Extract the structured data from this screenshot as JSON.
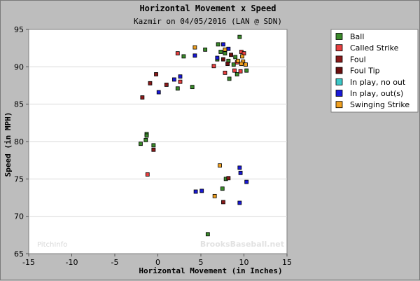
{
  "chart_data": {
    "type": "scatter",
    "title": "Horizontal Movement x Speed",
    "subtitle": "Kazmir on 04/05/2016 (LAN @ SDN)",
    "xlabel": "Horizontal Movement (in Inches)",
    "ylabel": "Speed (in MPH)",
    "xlim": [
      -15,
      15
    ],
    "ylim": [
      65,
      95
    ],
    "xticks": [
      "-15",
      "-10",
      "-5",
      "0",
      "5",
      "10",
      "15"
    ],
    "yticks": [
      "65",
      "70",
      "75",
      "80",
      "85",
      "90",
      "95"
    ],
    "grid": "horizontal",
    "legend_position": "right",
    "series": [
      {
        "name": "Ball",
        "color": "#3a8a2a",
        "points": [
          [
            7.0,
            93.0
          ],
          [
            9.5,
            94.0
          ],
          [
            5.5,
            92.3
          ],
          [
            7.3,
            92.0
          ],
          [
            7.8,
            91.8
          ],
          [
            9.0,
            91.3
          ],
          [
            6.9,
            91.0
          ],
          [
            8.2,
            90.8
          ],
          [
            8.8,
            90.3
          ],
          [
            10.3,
            89.5
          ],
          [
            9.2,
            89.0
          ],
          [
            8.3,
            88.4
          ],
          [
            3.0,
            91.4
          ],
          [
            2.3,
            87.1
          ],
          [
            4.0,
            87.3
          ],
          [
            -1.3,
            81.0
          ],
          [
            -1.3,
            80.8
          ],
          [
            -1.4,
            80.2
          ],
          [
            -2.0,
            79.7
          ],
          [
            -0.5,
            79.5
          ],
          [
            7.9,
            75.0
          ],
          [
            7.5,
            73.7
          ],
          [
            5.8,
            67.6
          ]
        ]
      },
      {
        "name": "Called Strike",
        "color": "#e84040",
        "points": [
          [
            2.3,
            91.8
          ],
          [
            6.5,
            90.1
          ],
          [
            9.7,
            92.0
          ],
          [
            10.0,
            91.8
          ],
          [
            9.2,
            90.6
          ],
          [
            9.6,
            89.4
          ],
          [
            8.9,
            89.5
          ],
          [
            7.8,
            89.2
          ],
          [
            2.6,
            88.0
          ],
          [
            -1.2,
            75.6
          ]
        ]
      },
      {
        "name": "Foul",
        "color": "#8a1a1a",
        "points": [
          [
            -0.2,
            89.0
          ],
          [
            -0.9,
            87.8
          ],
          [
            1.0,
            87.6
          ],
          [
            -1.8,
            85.9
          ],
          [
            -0.5,
            78.9
          ],
          [
            8.2,
            75.1
          ],
          [
            7.6,
            71.9
          ]
        ]
      },
      {
        "name": "Foul Tip",
        "color": "#6a0e0e",
        "points": [
          [
            8.5,
            91.6
          ],
          [
            7.6,
            91.0
          ],
          [
            8.1,
            90.4
          ]
        ]
      },
      {
        "name": "In play, no out",
        "color": "#3cc8c8",
        "points": []
      },
      {
        "name": "In play, out(s)",
        "color": "#1818d8",
        "points": [
          [
            7.6,
            93.0
          ],
          [
            8.2,
            92.4
          ],
          [
            4.3,
            91.5
          ],
          [
            6.9,
            91.2
          ],
          [
            2.6,
            88.7
          ],
          [
            1.9,
            88.3
          ],
          [
            0.1,
            86.6
          ],
          [
            9.5,
            76.5
          ],
          [
            9.6,
            75.8
          ],
          [
            10.3,
            74.6
          ],
          [
            5.1,
            73.4
          ],
          [
            4.4,
            73.3
          ],
          [
            9.5,
            71.8
          ]
        ]
      },
      {
        "name": "Swinging Strike",
        "color": "#f0a020",
        "points": [
          [
            7.8,
            92.3
          ],
          [
            4.3,
            92.6
          ],
          [
            9.8,
            91.4
          ],
          [
            9.9,
            90.7
          ],
          [
            9.7,
            90.4
          ],
          [
            10.2,
            90.3
          ],
          [
            9.3,
            90.8
          ],
          [
            7.2,
            76.8
          ],
          [
            6.6,
            72.7
          ]
        ]
      }
    ]
  },
  "watermarks": {
    "left": "PitchInfo",
    "right": "BrooksBaseball.net"
  }
}
